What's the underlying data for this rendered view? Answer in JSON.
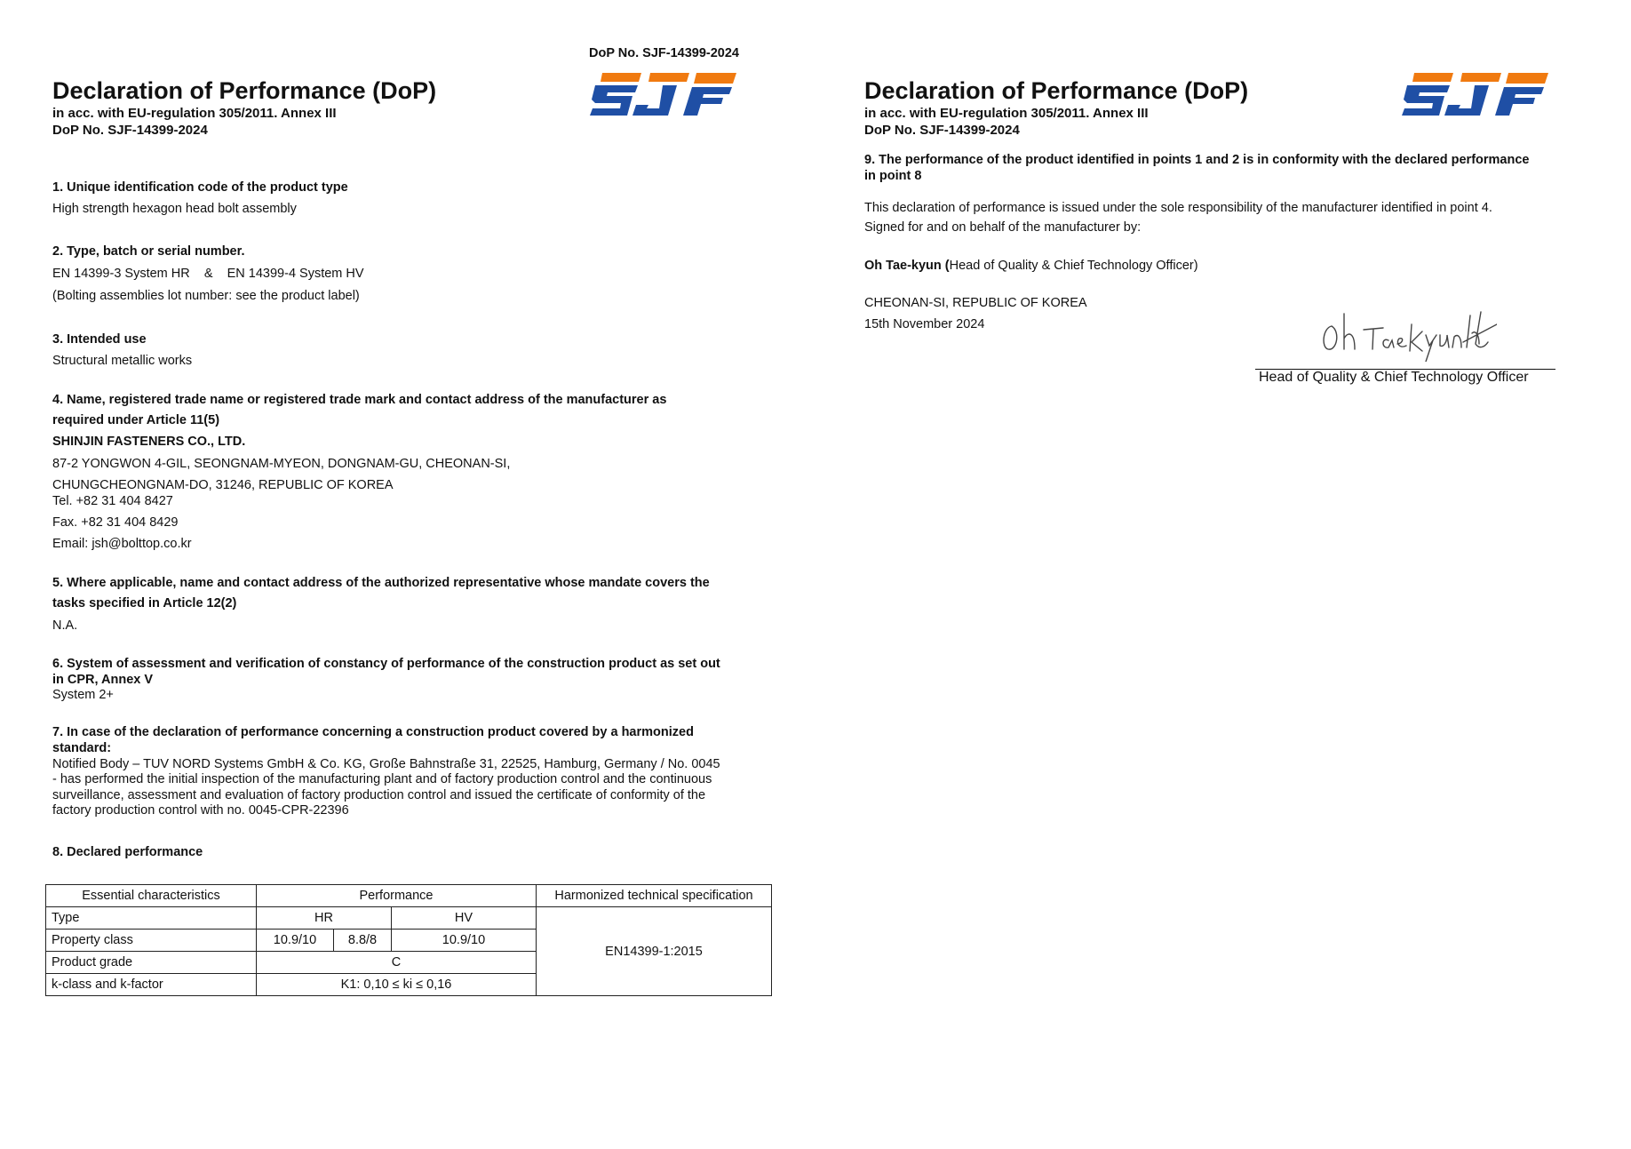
{
  "top_dop_no": "DoP No. SJF-14399-2024",
  "brand": {
    "logo_text": "SJF",
    "orange": "#f07a10",
    "blue": "#1f4fa5"
  },
  "page1": {
    "title": "Declaration of Performance (DoP)",
    "subtitle": "in acc. with EU-regulation 305/2011. Annex III",
    "dop_no": "DoP No. SJF-14399-2024",
    "s1": {
      "heading": "1. Unique identification code of the product type",
      "text": "High strength hexagon head bolt assembly"
    },
    "s2": {
      "heading": "2. Type, batch or serial number.",
      "line1": "EN 14399-3 System HR    &    EN 14399-4 System HV",
      "line2": "(Bolting assemblies lot number: see the product label)"
    },
    "s3": {
      "heading": "3. Intended use",
      "text": "Structural metallic works"
    },
    "s4": {
      "heading1": "4. Name, registered trade name or registered trade mark and contact address of the manufacturer as",
      "heading2": "required under Article 11(5)",
      "company": "SHINJIN FASTENERS CO., LTD.",
      "addr1": "87-2 YONGWON 4-GIL, SEONGNAM-MYEON, DONGNAM-GU, CHEONAN-SI,",
      "addr2": "CHUNGCHEONGNAM-DO, 31246, REPUBLIC OF KOREA",
      "tel": "Tel. +82 31 404 8427",
      "fax": "Fax. +82 31 404 8429",
      "email": "Email: jsh@bolttop.co.kr"
    },
    "s5": {
      "heading1": "5. Where applicable, name and contact address of the authorized representative whose mandate covers the",
      "heading2": "tasks specified in Article 12(2)",
      "text": "N.A."
    },
    "s6": {
      "heading1": "6. System of assessment and verification of constancy of performance of the construction product as set out",
      "heading2": "in CPR, Annex V",
      "text": "System 2+"
    },
    "s7": {
      "heading1": "7. In case of the declaration of performance concerning a construction product covered by a harmonized",
      "heading2": "standard:",
      "lines": [
        "Notified Body – TUV NORD Systems GmbH & Co. KG, Große Bahnstraße 31, 22525, Hamburg, Germany / No. 0045",
        "- has performed the initial inspection of the manufacturing plant and of factory production control and the continuous",
        "surveillance, assessment and evaluation of factory production control and issued the certificate of conformity of the",
        "factory production control with no. 0045-CPR-22396"
      ]
    },
    "s8": {
      "heading": "8. Declared performance"
    },
    "table": {
      "h_char": "Essential characteristics",
      "h_perf": "Performance",
      "h_spec": "Harmonized technical specification",
      "type_label": "Type",
      "hr": "HR",
      "hv": "HV",
      "pc_label": "Property class",
      "pc_hr1": "10.9/10",
      "pc_hr2": "8.8/8",
      "pc_hv": "10.9/10",
      "grade_label": "Product grade",
      "grade": "C",
      "k_label": "k-class and k-factor",
      "k_value": "K1: 0,10 ≤ ki ≤ 0,16",
      "spec": "EN14399-1:2015"
    }
  },
  "page2": {
    "title": "Declaration of Performance (DoP)",
    "subtitle": "in acc. with EU-regulation 305/2011. Annex III",
    "dop_no": "DoP No. SJF-14399-2024",
    "s9_1": "9. The performance of the product identified in points 1 and 2 is in conformity with the declared performance",
    "s9_2": "in point 8",
    "resp": "This declaration of performance is issued under the sole responsibility of the manufacturer identified in point 4.",
    "signed": "Signed for and on behalf of the manufacturer by:",
    "signer_name": "Oh Tae-kyun (",
    "signer_role": "Head of Quality & Chief Technology Officer)",
    "place": "CHEONAN-SI, REPUBLIC OF KOREA",
    "date": "15th November 2024",
    "signature": "Oh Tae Kyun",
    "sig_caption": "Head of Quality & Chief Technology Officer"
  }
}
